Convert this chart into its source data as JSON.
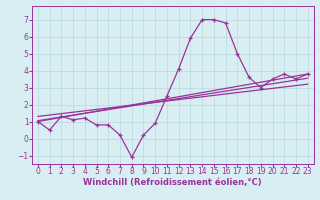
{
  "xlabel": "Windchill (Refroidissement éolien,°C)",
  "background_color": "#d9eef3",
  "grid_color": "#b8d8e0",
  "line_color": "#993399",
  "xlim": [
    -0.5,
    23.5
  ],
  "ylim": [
    -1.5,
    7.8
  ],
  "xticks": [
    0,
    1,
    2,
    3,
    4,
    5,
    6,
    7,
    8,
    9,
    10,
    11,
    12,
    13,
    14,
    15,
    16,
    17,
    18,
    19,
    20,
    21,
    22,
    23
  ],
  "yticks": [
    -1,
    0,
    1,
    2,
    3,
    4,
    5,
    6,
    7
  ],
  "curve1_x": [
    0,
    1,
    2,
    3,
    4,
    5,
    6,
    7,
    8,
    9,
    10,
    11,
    12,
    13,
    14,
    15,
    16,
    17,
    18,
    19,
    20,
    21,
    22,
    23
  ],
  "curve1_y": [
    1.0,
    0.5,
    1.3,
    1.1,
    1.2,
    0.8,
    0.8,
    0.2,
    -1.1,
    0.2,
    0.9,
    2.5,
    4.1,
    5.9,
    7.0,
    7.0,
    6.8,
    5.0,
    3.6,
    3.0,
    3.5,
    3.8,
    3.5,
    3.8
  ],
  "line1_x": [
    0,
    23
  ],
  "line1_y": [
    1.0,
    3.8
  ],
  "line2_x": [
    0,
    23
  ],
  "line2_y": [
    1.3,
    3.2
  ],
  "line3_x": [
    0,
    23
  ],
  "line3_y": [
    1.05,
    3.55
  ],
  "font_size": 6,
  "tick_font_size": 5.5
}
